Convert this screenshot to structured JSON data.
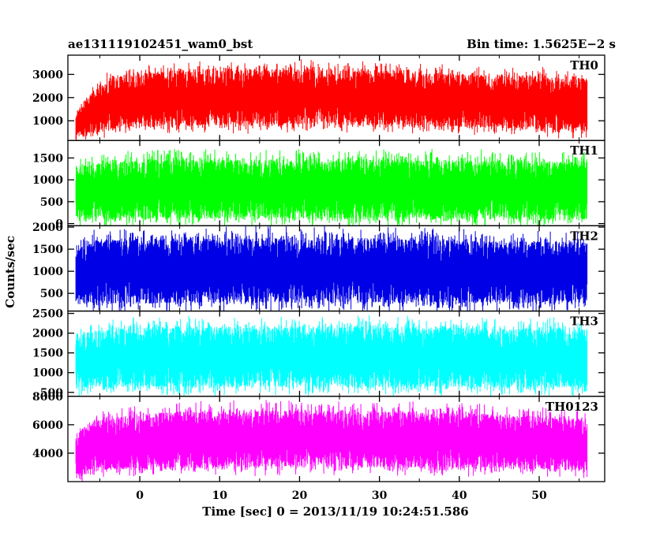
{
  "chart_data": {
    "type": "line",
    "title": "ae131119102451_wam0_bst",
    "bin_time_label": "Bin time: 1.5625E−2 s",
    "xlabel": "Time [sec] 0 = 2013/11/19 10:24:51.586",
    "ylabel": "Counts/sec",
    "xlim": [
      -9.0,
      58.2
    ],
    "data_x_range": [
      -8.0,
      56.0
    ],
    "x_ticks": [
      0,
      10,
      20,
      30,
      40,
      50
    ],
    "x_tick_labels": [
      "0",
      "10",
      "20",
      "30",
      "40",
      "50"
    ],
    "grid": false,
    "panels": [
      {
        "name": "TH0",
        "color": "#ff0000",
        "ylim": [
          150,
          3830
        ],
        "y_ticks": [
          1000,
          2000,
          3000
        ],
        "y_tick_labels": [
          "1000",
          "2000",
          "3000"
        ],
        "profile": [
          {
            "x": -8.0,
            "low": 200,
            "high": 1300
          },
          {
            "x": -6.0,
            "low": 500,
            "high": 2200
          },
          {
            "x": -3.0,
            "low": 700,
            "high": 2950
          },
          {
            "x": 5.0,
            "low": 800,
            "high": 3150
          },
          {
            "x": 20.0,
            "low": 850,
            "high": 3200
          },
          {
            "x": 35.0,
            "low": 800,
            "high": 3050
          },
          {
            "x": 56.0,
            "low": 600,
            "high": 2800
          }
        ]
      },
      {
        "name": "TH1",
        "color": "#00ff00",
        "ylim": [
          -50,
          1900
        ],
        "y_ticks": [
          0,
          500,
          1000,
          1500
        ],
        "y_tick_labels": [
          "0",
          "500",
          "1000",
          "1500"
        ],
        "profile": [
          {
            "x": -8.0,
            "low": 100,
            "high": 1300
          },
          {
            "x": 0.0,
            "low": 120,
            "high": 1450
          },
          {
            "x": 30.0,
            "low": 120,
            "high": 1450
          },
          {
            "x": 56.0,
            "low": 100,
            "high": 1400
          }
        ]
      },
      {
        "name": "TH2",
        "color": "#0000e6",
        "ylim": [
          100,
          2030
        ],
        "y_ticks": [
          500,
          1000,
          1500,
          2000
        ],
        "y_tick_labels": [
          "500",
          "1000",
          "1500",
          "2000"
        ],
        "profile": [
          {
            "x": -8.0,
            "low": 250,
            "high": 1500
          },
          {
            "x": -6.0,
            "low": 280,
            "high": 1700
          },
          {
            "x": 20.0,
            "low": 300,
            "high": 1750
          },
          {
            "x": 56.0,
            "low": 280,
            "high": 1650
          }
        ]
      },
      {
        "name": "TH3",
        "color": "#00ffff",
        "ylim": [
          400,
          2560
        ],
        "y_ticks": [
          500,
          1000,
          1500,
          2000,
          2500
        ],
        "y_tick_labels": [
          "500",
          "1000",
          "1500",
          "2000",
          "2500"
        ],
        "profile": [
          {
            "x": -8.0,
            "low": 600,
            "high": 2000
          },
          {
            "x": 0.0,
            "low": 650,
            "high": 2150
          },
          {
            "x": 30.0,
            "low": 650,
            "high": 2150
          },
          {
            "x": 56.0,
            "low": 620,
            "high": 2100
          }
        ]
      },
      {
        "name": "TH0123",
        "color": "#ff00ff",
        "ylim": [
          2000,
          8000
        ],
        "y_ticks": [
          4000,
          6000,
          8000
        ],
        "y_tick_labels": [
          "4000",
          "6000",
          "8000"
        ],
        "profile": [
          {
            "x": -8.0,
            "low": 2300,
            "high": 5200
          },
          {
            "x": -6.0,
            "low": 2800,
            "high": 6300
          },
          {
            "x": 5.0,
            "low": 3000,
            "high": 6900
          },
          {
            "x": 20.0,
            "low": 3100,
            "high": 7000
          },
          {
            "x": 40.0,
            "low": 3000,
            "high": 6800
          },
          {
            "x": 56.0,
            "low": 2800,
            "high": 6400
          }
        ]
      }
    ]
  }
}
